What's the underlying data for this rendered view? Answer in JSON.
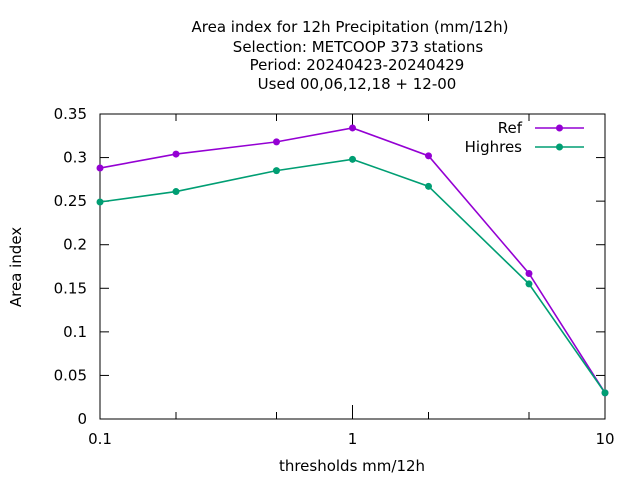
{
  "chart_data": {
    "type": "line",
    "title_lines": [
      "Area index  for 12h Precipitation (mm/12h)",
      "Selection: METCOOP    373 stations",
      "Period: 20240423-20240429",
      "Used  00,06,12,18 + 12-00"
    ],
    "xlabel": "thresholds mm/12h",
    "ylabel": "Area index",
    "x_scale": "log",
    "xlim": [
      0.1,
      10
    ],
    "ylim": [
      0,
      0.35
    ],
    "x_tick_labels": [
      "0.1",
      "1",
      "10"
    ],
    "x_ticks": [
      0.1,
      0.2,
      0.5,
      1,
      2,
      5,
      10
    ],
    "y_ticks": [
      "0",
      "0.05",
      "0.1",
      "0.15",
      "0.2",
      "0.25",
      "0.3",
      "0.35"
    ],
    "grid": false,
    "legend_position": "top-right",
    "x": [
      0.1,
      0.2,
      0.5,
      1,
      2,
      5,
      10
    ],
    "series": [
      {
        "name": "Ref",
        "color": "#9400d3",
        "values": [
          0.288,
          0.304,
          0.318,
          0.334,
          0.302,
          0.167,
          0.03
        ]
      },
      {
        "name": "Highres",
        "color": "#009e73",
        "values": [
          0.249,
          0.261,
          0.285,
          0.298,
          0.267,
          0.155,
          0.03
        ]
      }
    ]
  }
}
